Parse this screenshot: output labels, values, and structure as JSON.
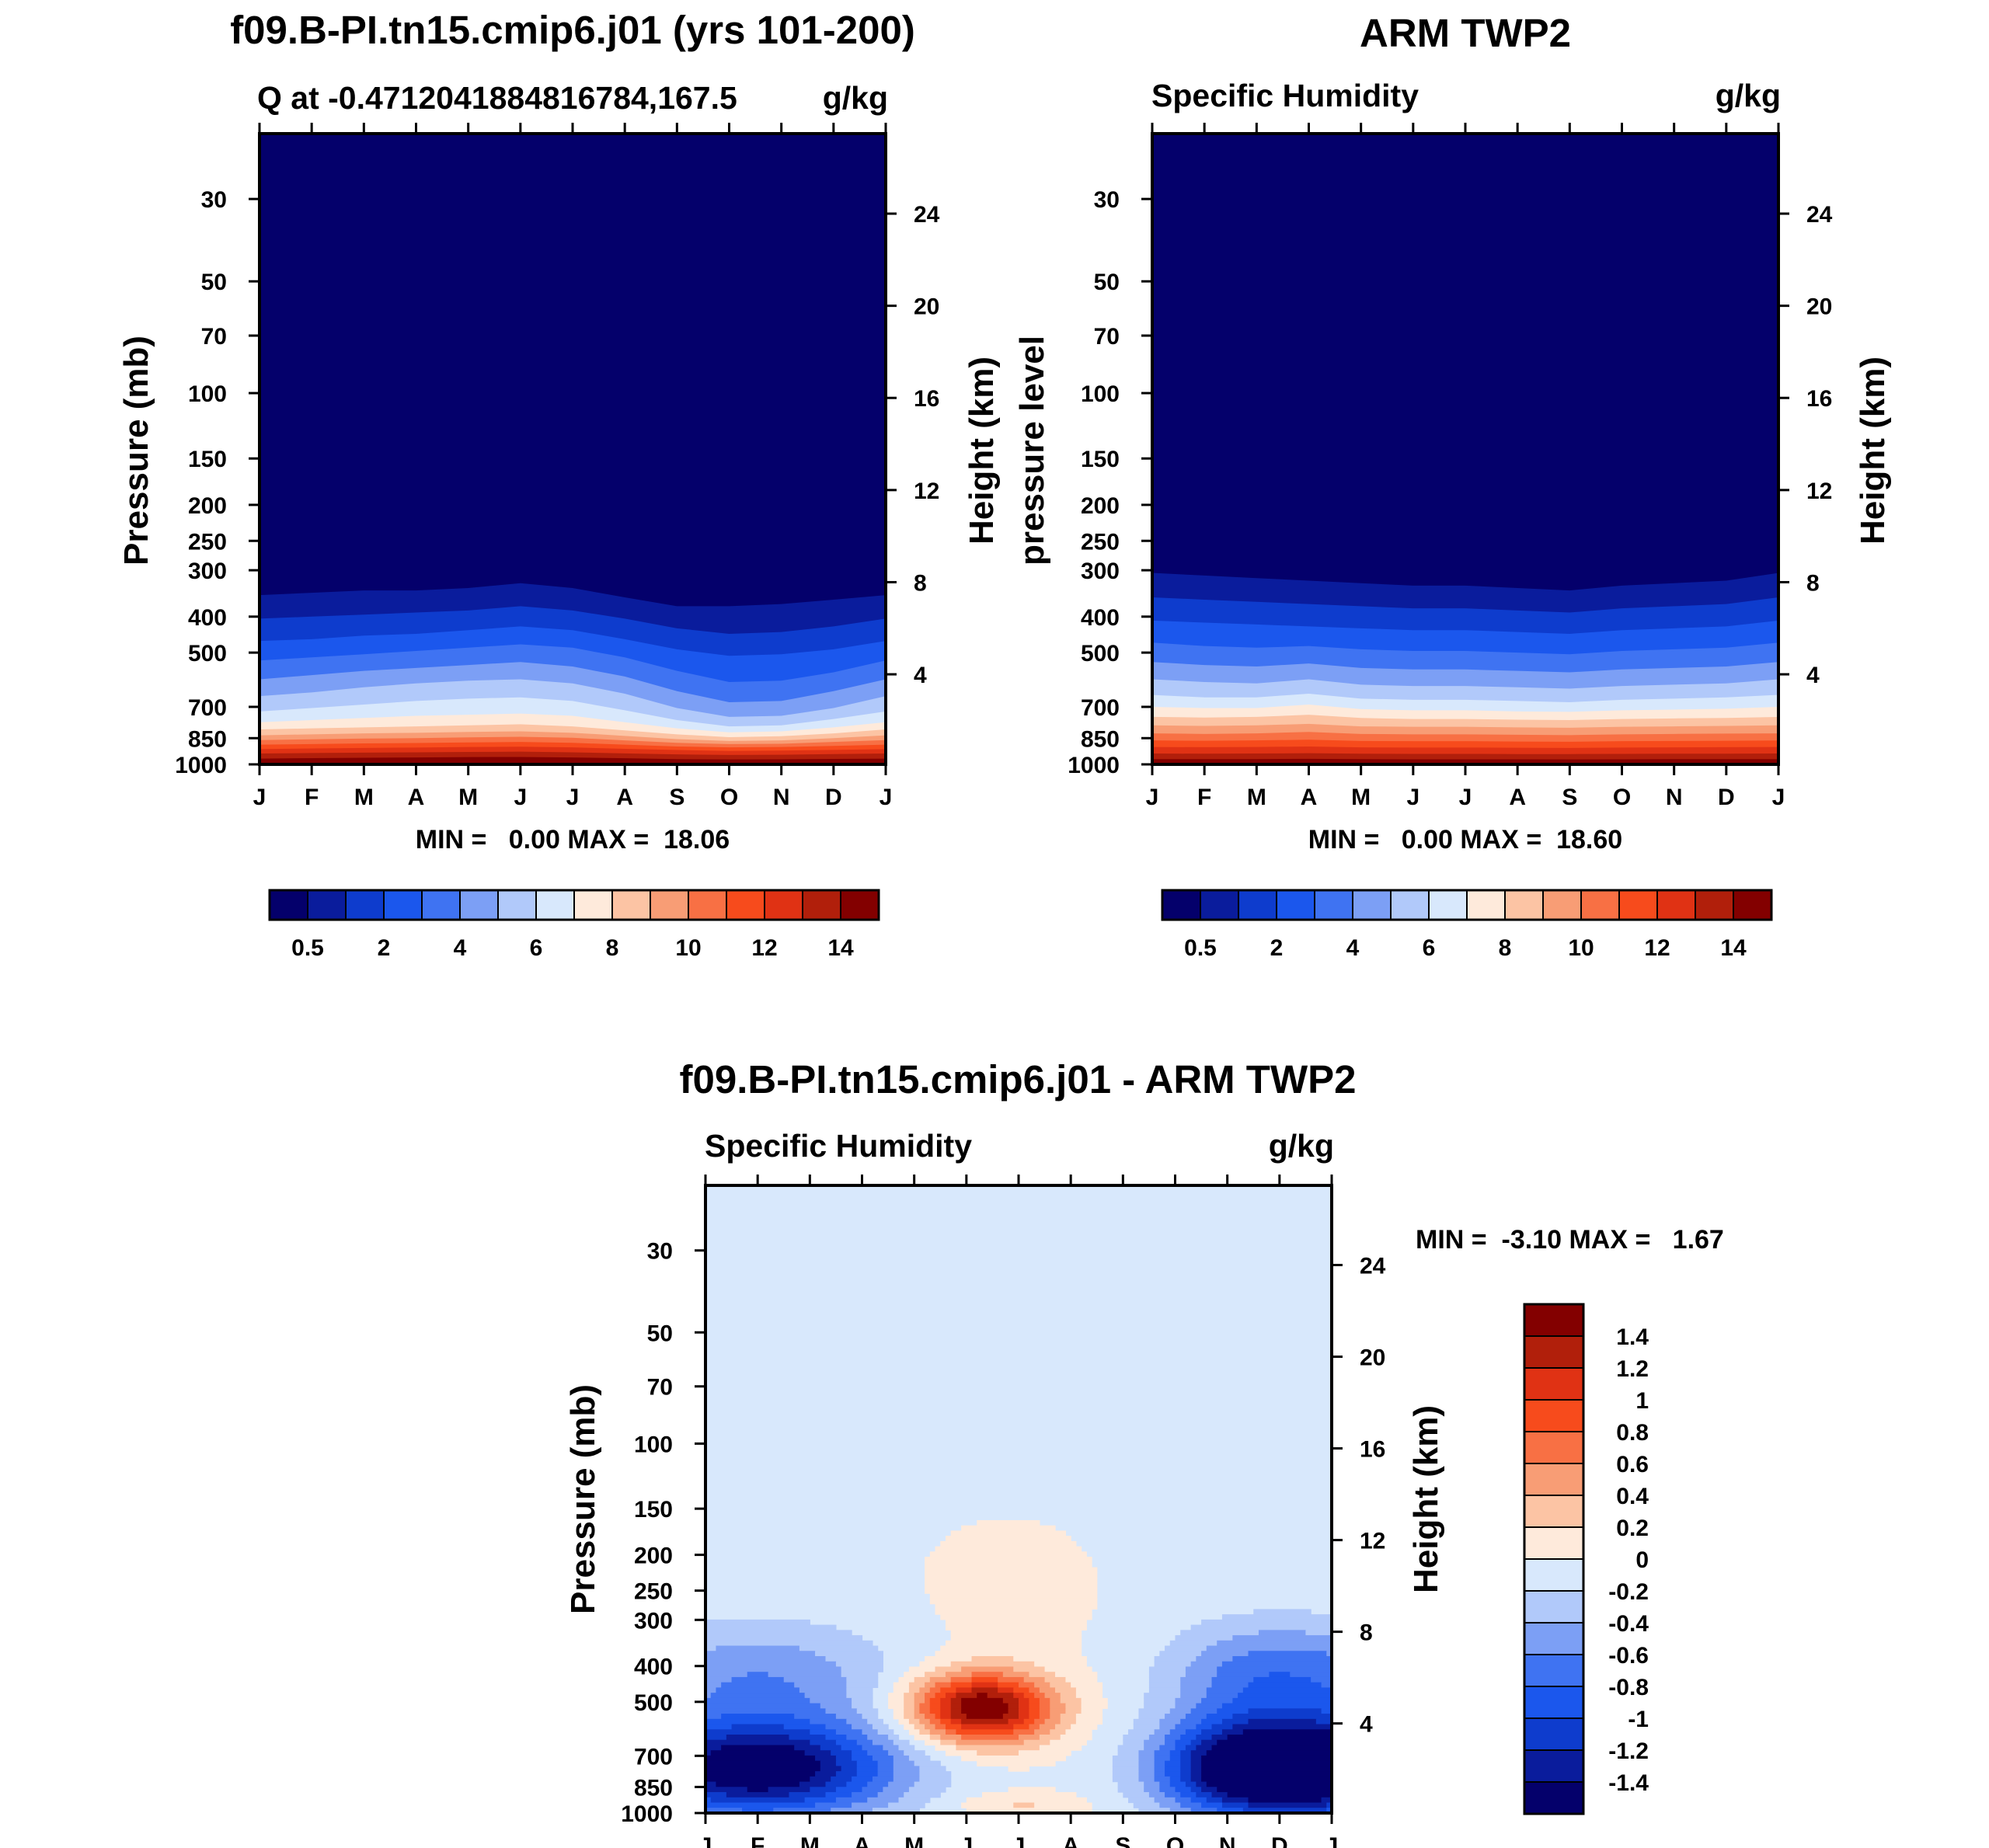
{
  "chart_data": [
    {
      "id": "model",
      "type": "contour",
      "title": "f09.B-PI.tn15.cmip6.j01 (yrs 101-200)",
      "subtitle_left": "Q at -0.4712041884816784,167.5",
      "subtitle_right": "g/kg",
      "ylabel": "Pressure (mb)",
      "y2label": "Height (km)",
      "minmax": "MIN =   0.00 MAX =  18.06",
      "months": [
        "J",
        "F",
        "M",
        "A",
        "M",
        "J",
        "J",
        "A",
        "S",
        "O",
        "N",
        "D",
        "J"
      ],
      "pressure_ticks": [
        "30",
        "50",
        "70",
        "100",
        "150",
        "200",
        "250",
        "300",
        "400",
        "500",
        "700",
        "850",
        "1000"
      ],
      "pressure_values": [
        30,
        50,
        70,
        100,
        150,
        200,
        250,
        300,
        400,
        500,
        700,
        850,
        1000
      ],
      "height_ticks": [
        "24",
        "20",
        "16",
        "12",
        "8",
        "4"
      ],
      "height_values_km": [
        24,
        20,
        16,
        12,
        8,
        4
      ],
      "ylim_mb": [
        20,
        1000
      ],
      "colorbar_labels": [
        "0.5",
        "2",
        "4",
        "6",
        "8",
        "10",
        "12",
        "14"
      ],
      "contour_levels_gkg": [
        0.5,
        1,
        2,
        3,
        4,
        5,
        6,
        7,
        8,
        9,
        10,
        11,
        12,
        13,
        14
      ],
      "levels_mb_by_month": {
        "comment": "pressure (mb) of each contour level at each month J..J",
        "0.5": [
          350,
          345,
          340,
          340,
          335,
          325,
          335,
          355,
          375,
          375,
          370,
          360,
          350
        ],
        "1": [
          405,
          400,
          395,
          390,
          385,
          375,
          385,
          405,
          430,
          445,
          440,
          425,
          405
        ],
        "2": [
          465,
          460,
          450,
          445,
          435,
          425,
          435,
          460,
          490,
          510,
          505,
          490,
          465
        ],
        "3": [
          525,
          515,
          505,
          495,
          485,
          475,
          485,
          515,
          560,
          600,
          595,
          565,
          525
        ],
        "4": [
          590,
          575,
          560,
          550,
          540,
          530,
          545,
          580,
          635,
          680,
          675,
          635,
          590
        ],
        "5": [
          655,
          640,
          620,
          605,
          595,
          590,
          605,
          645,
          705,
          745,
          740,
          705,
          655
        ],
        "6": [
          720,
          705,
          690,
          675,
          665,
          660,
          675,
          715,
          760,
          790,
          785,
          755,
          720
        ],
        "7": [
          770,
          760,
          750,
          740,
          735,
          730,
          740,
          770,
          800,
          820,
          815,
          795,
          770
        ],
        "8": [
          805,
          800,
          795,
          790,
          785,
          780,
          790,
          810,
          830,
          845,
          840,
          825,
          805
        ],
        "9": [
          835,
          830,
          825,
          822,
          818,
          815,
          822,
          838,
          855,
          865,
          862,
          850,
          835
        ],
        "10": [
          860,
          856,
          852,
          850,
          846,
          843,
          848,
          862,
          875,
          882,
          880,
          870,
          860
        ],
        "11": [
          885,
          882,
          878,
          876,
          873,
          870,
          875,
          885,
          895,
          900,
          898,
          892,
          885
        ],
        "12": [
          910,
          906,
          903,
          901,
          898,
          896,
          900,
          908,
          915,
          920,
          918,
          914,
          910
        ],
        "13": [
          935,
          932,
          930,
          928,
          926,
          924,
          928,
          934,
          940,
          943,
          942,
          938,
          935
        ],
        "14": [
          965,
          962,
          960,
          958,
          956,
          955,
          958,
          963,
          968,
          970,
          969,
          967,
          965
        ]
      }
    },
    {
      "id": "obs",
      "type": "contour",
      "title": "ARM TWP2",
      "subtitle_left": "Specific Humidity",
      "subtitle_right": "g/kg",
      "ylabel": "pressure level",
      "y2label": "Height (km)",
      "minmax": "MIN =   0.00 MAX =  18.60",
      "months": [
        "J",
        "F",
        "M",
        "A",
        "M",
        "J",
        "J",
        "A",
        "S",
        "O",
        "N",
        "D",
        "J"
      ],
      "pressure_ticks": [
        "30",
        "50",
        "70",
        "100",
        "150",
        "200",
        "250",
        "300",
        "400",
        "500",
        "700",
        "850",
        "1000"
      ],
      "pressure_values": [
        30,
        50,
        70,
        100,
        150,
        200,
        250,
        300,
        400,
        500,
        700,
        850,
        1000
      ],
      "height_ticks": [
        "24",
        "20",
        "16",
        "12",
        "8",
        "4"
      ],
      "height_values_km": [
        24,
        20,
        16,
        12,
        8,
        4
      ],
      "ylim_mb": [
        20,
        1000
      ],
      "colorbar_labels": [
        "0.5",
        "2",
        "4",
        "6",
        "8",
        "10",
        "12",
        "14"
      ],
      "contour_levels_gkg": [
        0.5,
        1,
        2,
        3,
        4,
        5,
        6,
        7,
        8,
        9,
        10,
        11,
        12,
        13,
        14
      ],
      "levels_mb_by_month": {
        "0.5": [
          305,
          310,
          315,
          320,
          325,
          330,
          330,
          335,
          340,
          330,
          325,
          320,
          305
        ],
        "1": [
          355,
          360,
          365,
          370,
          375,
          380,
          380,
          385,
          390,
          380,
          375,
          370,
          355
        ],
        "2": [
          410,
          415,
          420,
          425,
          430,
          435,
          435,
          440,
          445,
          435,
          430,
          425,
          410
        ],
        "3": [
          470,
          480,
          485,
          480,
          490,
          495,
          495,
          500,
          505,
          495,
          490,
          485,
          470
        ],
        "4": [
          530,
          540,
          545,
          535,
          550,
          555,
          555,
          560,
          565,
          555,
          550,
          545,
          530
        ],
        "5": [
          590,
          600,
          605,
          590,
          610,
          615,
          615,
          620,
          625,
          615,
          610,
          605,
          590
        ],
        "6": [
          650,
          660,
          660,
          645,
          665,
          670,
          670,
          675,
          680,
          670,
          665,
          660,
          650
        ],
        "7": [
          700,
          705,
          705,
          690,
          710,
          715,
          715,
          720,
          722,
          715,
          712,
          708,
          700
        ],
        "8": [
          745,
          748,
          745,
          735,
          750,
          755,
          755,
          758,
          760,
          755,
          752,
          750,
          745
        ],
        "9": [
          785,
          788,
          785,
          778,
          790,
          792,
          792,
          795,
          797,
          792,
          790,
          788,
          785
        ],
        "10": [
          825,
          828,
          825,
          818,
          828,
          830,
          830,
          832,
          834,
          830,
          828,
          826,
          825
        ],
        "11": [
          862,
          864,
          862,
          858,
          865,
          866,
          866,
          868,
          869,
          866,
          865,
          864,
          862
        ],
        "12": [
          898,
          899,
          898,
          895,
          900,
          901,
          901,
          902,
          903,
          901,
          900,
          899,
          898
        ],
        "13": [
          935,
          936,
          935,
          933,
          936,
          937,
          937,
          938,
          938,
          937,
          936,
          936,
          935
        ],
        "14": [
          968,
          968,
          968,
          966,
          968,
          969,
          969,
          969,
          970,
          969,
          968,
          968,
          968
        ]
      }
    },
    {
      "id": "diff",
      "type": "contour",
      "title": "f09.B-PI.tn15.cmip6.j01 - ARM TWP2",
      "subtitle_left": "Specific Humidity",
      "subtitle_right": "g/kg",
      "ylabel": "Pressure (mb)",
      "y2label": "Height (km)",
      "minmax": "MIN =  -3.10 MAX =   1.67",
      "months": [
        "J",
        "F",
        "M",
        "A",
        "M",
        "J",
        "J",
        "A",
        "S",
        "O",
        "N",
        "D",
        "J"
      ],
      "pressure_ticks": [
        "30",
        "50",
        "70",
        "100",
        "150",
        "200",
        "250",
        "300",
        "400",
        "500",
        "700",
        "850",
        "1000"
      ],
      "pressure_values": [
        30,
        50,
        70,
        100,
        150,
        200,
        250,
        300,
        400,
        500,
        700,
        850,
        1000
      ],
      "height_ticks": [
        "24",
        "20",
        "16",
        "12",
        "8",
        "4"
      ],
      "height_values_km": [
        24,
        20,
        16,
        12,
        8,
        4
      ],
      "ylim_mb": [
        20,
        1000
      ],
      "colorbar_labels": [
        "1.4",
        "1.2",
        "1",
        "0.8",
        "0.6",
        "0.4",
        "0.2",
        "0",
        "-0.2",
        "-0.4",
        "-0.6",
        "-0.8",
        "-1",
        "-1.2",
        "-1.4"
      ],
      "features": [
        {
          "name": "moist-anomaly-core",
          "month": 5.3,
          "p_mb": 520,
          "value": 1.67
        },
        {
          "name": "dry-anomaly-winter-low",
          "month": 1.0,
          "p_mb": 900,
          "value": -1.6
        },
        {
          "name": "dry-anomaly-late-year-low",
          "month": 10.5,
          "p_mb": 870,
          "value": -1.6
        },
        {
          "name": "weak-positive-upper",
          "month": 5.8,
          "p_mb": 260,
          "value": 0.1
        }
      ]
    }
  ],
  "colors": {
    "model_obs_palette": [
      "#04006b",
      "#0a1c9c",
      "#0e3ccd",
      "#1b57ed",
      "#3f73f2",
      "#7c9ff5",
      "#b1c9fa",
      "#d8e8fc",
      "#feeadb",
      "#fcc4a4",
      "#f89d75",
      "#f87044",
      "#f74b1c",
      "#e03214",
      "#b11f0b",
      "#830000"
    ],
    "diff_palette": [
      "#04006b",
      "#0a1c9c",
      "#0e3ccd",
      "#1b57ed",
      "#3f73f2",
      "#7c9ff5",
      "#b1c9fa",
      "#d8e8fc",
      "#feeadb",
      "#fcc4a4",
      "#f89d75",
      "#f87044",
      "#f74b1c",
      "#e03214",
      "#b11f0b",
      "#830000"
    ]
  }
}
